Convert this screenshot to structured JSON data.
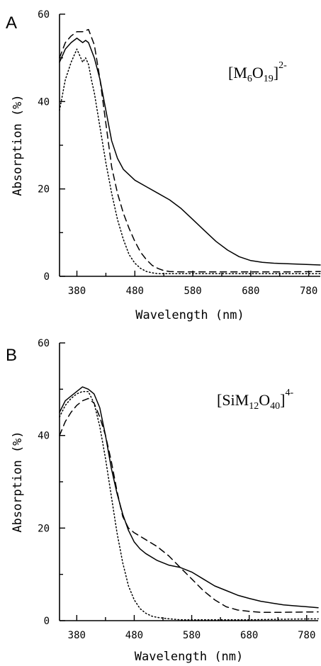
{
  "chart_data": [
    {
      "type": "line",
      "panel_label": "A",
      "annotation": {
        "base": "[M",
        "sub1": "6",
        "mid": "O",
        "sub2": "19",
        "end": "]",
        "charge": "2-"
      },
      "xlabel": "Wavelength (nm)",
      "ylabel": "Absorption (%)",
      "xlim": [
        350,
        800
      ],
      "ylim": [
        0,
        60
      ],
      "xticks": [
        380,
        480,
        580,
        680,
        780
      ],
      "yticks": [
        0,
        20,
        40,
        60
      ],
      "series": [
        {
          "style": "solid",
          "x": [
            350,
            360,
            370,
            380,
            385,
            390,
            395,
            400,
            410,
            420,
            430,
            440,
            450,
            460,
            480,
            500,
            520,
            540,
            560,
            580,
            600,
            620,
            640,
            660,
            680,
            700,
            720,
            740,
            760,
            780,
            800
          ],
          "y": [
            49,
            52,
            53.5,
            54.5,
            54,
            53.5,
            54,
            53.5,
            50,
            45,
            38,
            31,
            27,
            24.5,
            22,
            20.5,
            19,
            17.5,
            15.5,
            13,
            10.5,
            8,
            6,
            4.5,
            3.6,
            3.2,
            3.0,
            2.9,
            2.8,
            2.7,
            2.6
          ]
        },
        {
          "style": "dashed",
          "x": [
            350,
            360,
            370,
            380,
            390,
            400,
            410,
            420,
            430,
            440,
            450,
            460,
            470,
            480,
            490,
            500,
            510,
            520,
            530,
            540,
            560,
            580,
            620,
            680,
            740,
            800
          ],
          "y": [
            50,
            53.5,
            55,
            56,
            56,
            56.5,
            53,
            45,
            35,
            25,
            19,
            14.5,
            11,
            8,
            5.5,
            3.8,
            2.5,
            1.8,
            1.3,
            1.1,
            1.0,
            1.0,
            1.0,
            1.0,
            1.0,
            1.1
          ]
        },
        {
          "style": "dotted",
          "x": [
            350,
            360,
            370,
            375,
            380,
            385,
            390,
            395,
            400,
            405,
            410,
            420,
            430,
            440,
            450,
            460,
            470,
            480,
            490,
            500,
            510,
            520,
            540,
            580,
            680,
            800
          ],
          "y": [
            38,
            45,
            49,
            50.5,
            52,
            50.5,
            49,
            50,
            48.5,
            45,
            42,
            34,
            26,
            19,
            13,
            8.5,
            5,
            3,
            1.8,
            1.1,
            0.8,
            0.6,
            0.6,
            0.6,
            0.6,
            0.6
          ]
        }
      ]
    },
    {
      "type": "line",
      "panel_label": "B",
      "annotation": {
        "base": "[SiM",
        "sub1": "12",
        "mid": "O",
        "sub2": "40",
        "end": "]",
        "charge": "4-"
      },
      "xlabel": "Wavelength (nm)",
      "ylabel": "Absorption (%)",
      "xlim": [
        350,
        800
      ],
      "ylim": [
        0,
        60
      ],
      "xticks": [
        380,
        480,
        580,
        680,
        780
      ],
      "yticks": [
        0,
        20,
        40,
        60
      ],
      "series": [
        {
          "style": "solid",
          "x": [
            350,
            360,
            370,
            380,
            390,
            400,
            410,
            420,
            430,
            440,
            450,
            460,
            470,
            480,
            490,
            500,
            520,
            540,
            560,
            580,
            600,
            620,
            640,
            660,
            680,
            700,
            720,
            740,
            760,
            780,
            800
          ],
          "y": [
            45,
            47.5,
            48.5,
            49.5,
            50.5,
            50,
            49,
            46,
            40,
            33,
            27.5,
            23,
            19.5,
            17,
            15.5,
            14.5,
            13,
            12,
            11.5,
            10.5,
            9,
            7.5,
            6.5,
            5.5,
            4.8,
            4.2,
            3.8,
            3.4,
            3.2,
            3.0,
            2.8
          ]
        },
        {
          "style": "dashed",
          "x": [
            350,
            360,
            370,
            380,
            390,
            400,
            410,
            420,
            430,
            440,
            450,
            460,
            470,
            480,
            500,
            520,
            540,
            560,
            580,
            600,
            620,
            640,
            660,
            680,
            700,
            740,
            800
          ],
          "y": [
            40,
            43,
            45,
            46.5,
            47.5,
            48,
            47,
            44,
            40,
            34.5,
            28,
            22.5,
            20,
            19,
            17.5,
            16,
            14,
            11.5,
            9,
            6.5,
            4.5,
            3,
            2.3,
            2.0,
            1.8,
            1.8,
            1.9
          ]
        },
        {
          "style": "dotted",
          "x": [
            350,
            360,
            370,
            380,
            390,
            400,
            410,
            420,
            430,
            440,
            450,
            460,
            470,
            480,
            490,
            500,
            510,
            520,
            540,
            560,
            580,
            620,
            680,
            740,
            800
          ],
          "y": [
            44,
            46.5,
            48,
            49,
            49.5,
            49.5,
            47,
            42,
            35,
            27,
            19,
            12.5,
            7.5,
            4.5,
            2.6,
            1.6,
            1.0,
            0.7,
            0.4,
            0.2,
            0.2,
            0.2,
            0.2,
            0.3,
            0.4
          ]
        }
      ]
    }
  ]
}
